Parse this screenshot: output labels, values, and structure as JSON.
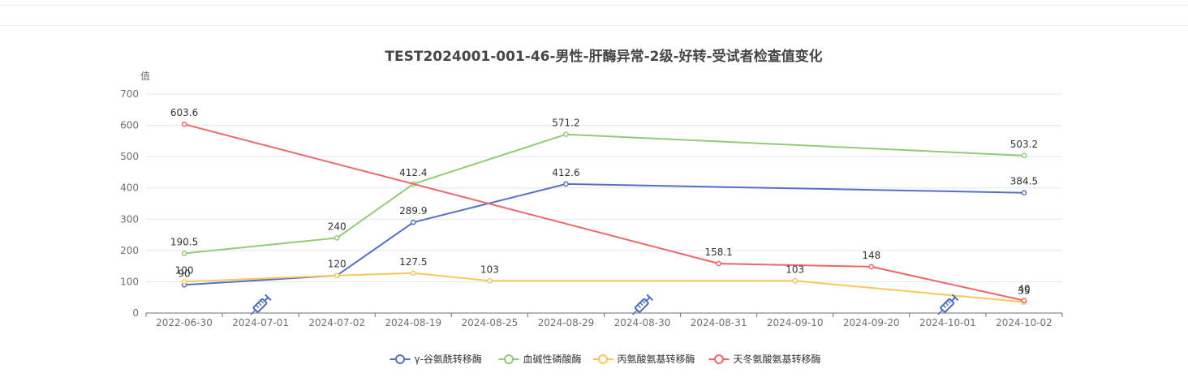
{
  "chart_data": {
    "type": "line",
    "title": "TEST2024001-001-46-男性-肝酶异常-2级-好转-受试者检查值变化",
    "ylabel": "值",
    "xlabel": "",
    "ylim": [
      0,
      700
    ],
    "yticks": [
      0,
      100,
      200,
      300,
      400,
      500,
      600,
      700
    ],
    "grid": true,
    "legend_position": "bottom",
    "categories": [
      "2022-06-30",
      "2024-07-01",
      "2024-07-02",
      "2024-08-19",
      "2024-08-25",
      "2024-08-29",
      "2024-08-30",
      "2024-08-31",
      "2024-09-10",
      "2024-09-20",
      "2024-10-01",
      "2024-10-02"
    ],
    "series": [
      {
        "name": "γ-谷氨酰转移酶",
        "color": "#5470c6",
        "values": [
          90,
          null,
          120,
          289.9,
          null,
          412.6,
          null,
          null,
          null,
          null,
          null,
          384.5
        ],
        "labels": [
          "90",
          "",
          "120",
          "289.9",
          "",
          "412.6",
          "",
          "",
          "",
          "",
          "",
          "384.5"
        ]
      },
      {
        "name": "血碱性磷酸酶",
        "color": "#91cc75",
        "values": [
          190.5,
          null,
          240,
          412.4,
          null,
          571.2,
          null,
          null,
          null,
          null,
          null,
          503.2
        ],
        "labels": [
          "190.5",
          "",
          "240",
          "412.4",
          "",
          "571.2",
          "",
          "",
          "",
          "",
          "",
          "503.2"
        ]
      },
      {
        "name": "丙氨酸氨基转移酶",
        "color": "#fac858",
        "values": [
          100,
          null,
          120,
          127.5,
          103,
          null,
          null,
          null,
          103,
          null,
          null,
          35
        ],
        "labels": [
          "100",
          "",
          "",
          "127.5",
          "103",
          "",
          "",
          "",
          "103",
          "",
          "",
          "35"
        ]
      },
      {
        "name": "天冬氨酸氨基转移酶",
        "color": "#ee6666",
        "values": [
          603.6,
          null,
          null,
          null,
          null,
          null,
          null,
          158.1,
          null,
          148,
          null,
          40
        ],
        "labels": [
          "603.6",
          "",
          "",
          "",
          "",
          "",
          "",
          "158.1",
          "",
          "148",
          "",
          "40"
        ]
      }
    ],
    "dose_markers": [
      "2024-07-01",
      "2024-08-30",
      "2024-10-01"
    ],
    "dose_icon": "syringe-icon",
    "dose_color": "#4a6bc4"
  }
}
